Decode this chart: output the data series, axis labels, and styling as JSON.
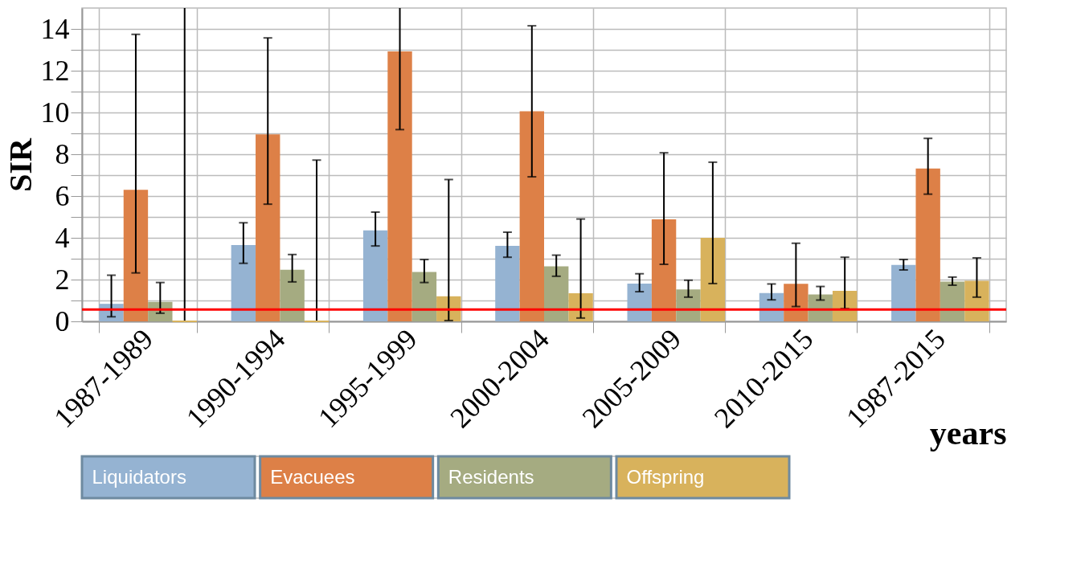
{
  "chart_data": {
    "type": "bar",
    "ylabel": "SIR",
    "xlabel": "years",
    "categories": [
      "1987-1989",
      "1990-1994",
      "1995-1999",
      "2000-2004",
      "2005-2009",
      "2010-2015",
      "1987-2015"
    ],
    "series": [
      {
        "name": "Liquidators",
        "color": "#95b3d2",
        "values": [
          0.84,
          3.65,
          4.36,
          3.62,
          1.81,
          1.36,
          2.7
        ],
        "errors": [
          [
            0.22,
            2.21
          ],
          [
            2.78,
            4.72
          ],
          [
            3.61,
            5.23
          ],
          [
            3.07,
            4.27
          ],
          [
            1.42,
            2.28
          ],
          [
            1.03,
            1.79
          ],
          [
            2.46,
            2.96
          ]
        ]
      },
      {
        "name": "Evacuees",
        "color": "#dd8047",
        "values": [
          6.3,
          8.95,
          12.92,
          10.06,
          4.88,
          1.8,
          7.32
        ],
        "errors": [
          [
            2.32,
            13.74
          ],
          [
            5.61,
            13.57
          ],
          [
            9.18,
            15
          ],
          [
            6.92,
            14.15
          ],
          [
            2.73,
            8.07
          ],
          [
            0.71,
            3.74
          ],
          [
            6.09,
            8.76
          ]
        ]
      },
      {
        "name": "Residents",
        "color": "#a5ab81",
        "values": [
          0.93,
          2.47,
          2.37,
          2.63,
          1.53,
          1.29,
          1.9
        ],
        "errors": [
          [
            0.39,
            1.86
          ],
          [
            1.89,
            3.2
          ],
          [
            1.86,
            2.96
          ],
          [
            2.16,
            3.17
          ],
          [
            1.16,
            1.97
          ],
          [
            1.02,
            1.67
          ],
          [
            1.73,
            2.12
          ]
        ]
      },
      {
        "name": "Offspring",
        "color": "#d8b25c",
        "values": [
          0,
          0,
          1.2,
          1.35,
          4.0,
          1.46,
          1.94
        ],
        "errors": [
          [
            0,
            15
          ],
          [
            0,
            7.72
          ],
          [
            0.04,
            6.79
          ],
          [
            0.16,
            4.9
          ],
          [
            1.81,
            7.62
          ],
          [
            0.61,
            3.07
          ],
          [
            1.16,
            3.04
          ]
        ]
      }
    ],
    "ylim": [
      0,
      15
    ],
    "yticks": [
      0,
      {
        "value": 1,
        "label": null
      },
      2,
      {
        "value": 3,
        "label": null
      },
      4,
      {
        "value": 5,
        "label": null
      },
      6,
      {
        "value": 7,
        "label": null
      },
      8,
      {
        "value": 9,
        "label": null
      },
      10,
      {
        "value": 11,
        "label": null
      },
      12,
      {
        "value": 13,
        "label": null
      },
      14
    ],
    "ref_lines": [
      {
        "axis": "y",
        "value": 0.57,
        "color": "#ff0000"
      }
    ],
    "grid": true,
    "legend": "bottom"
  }
}
